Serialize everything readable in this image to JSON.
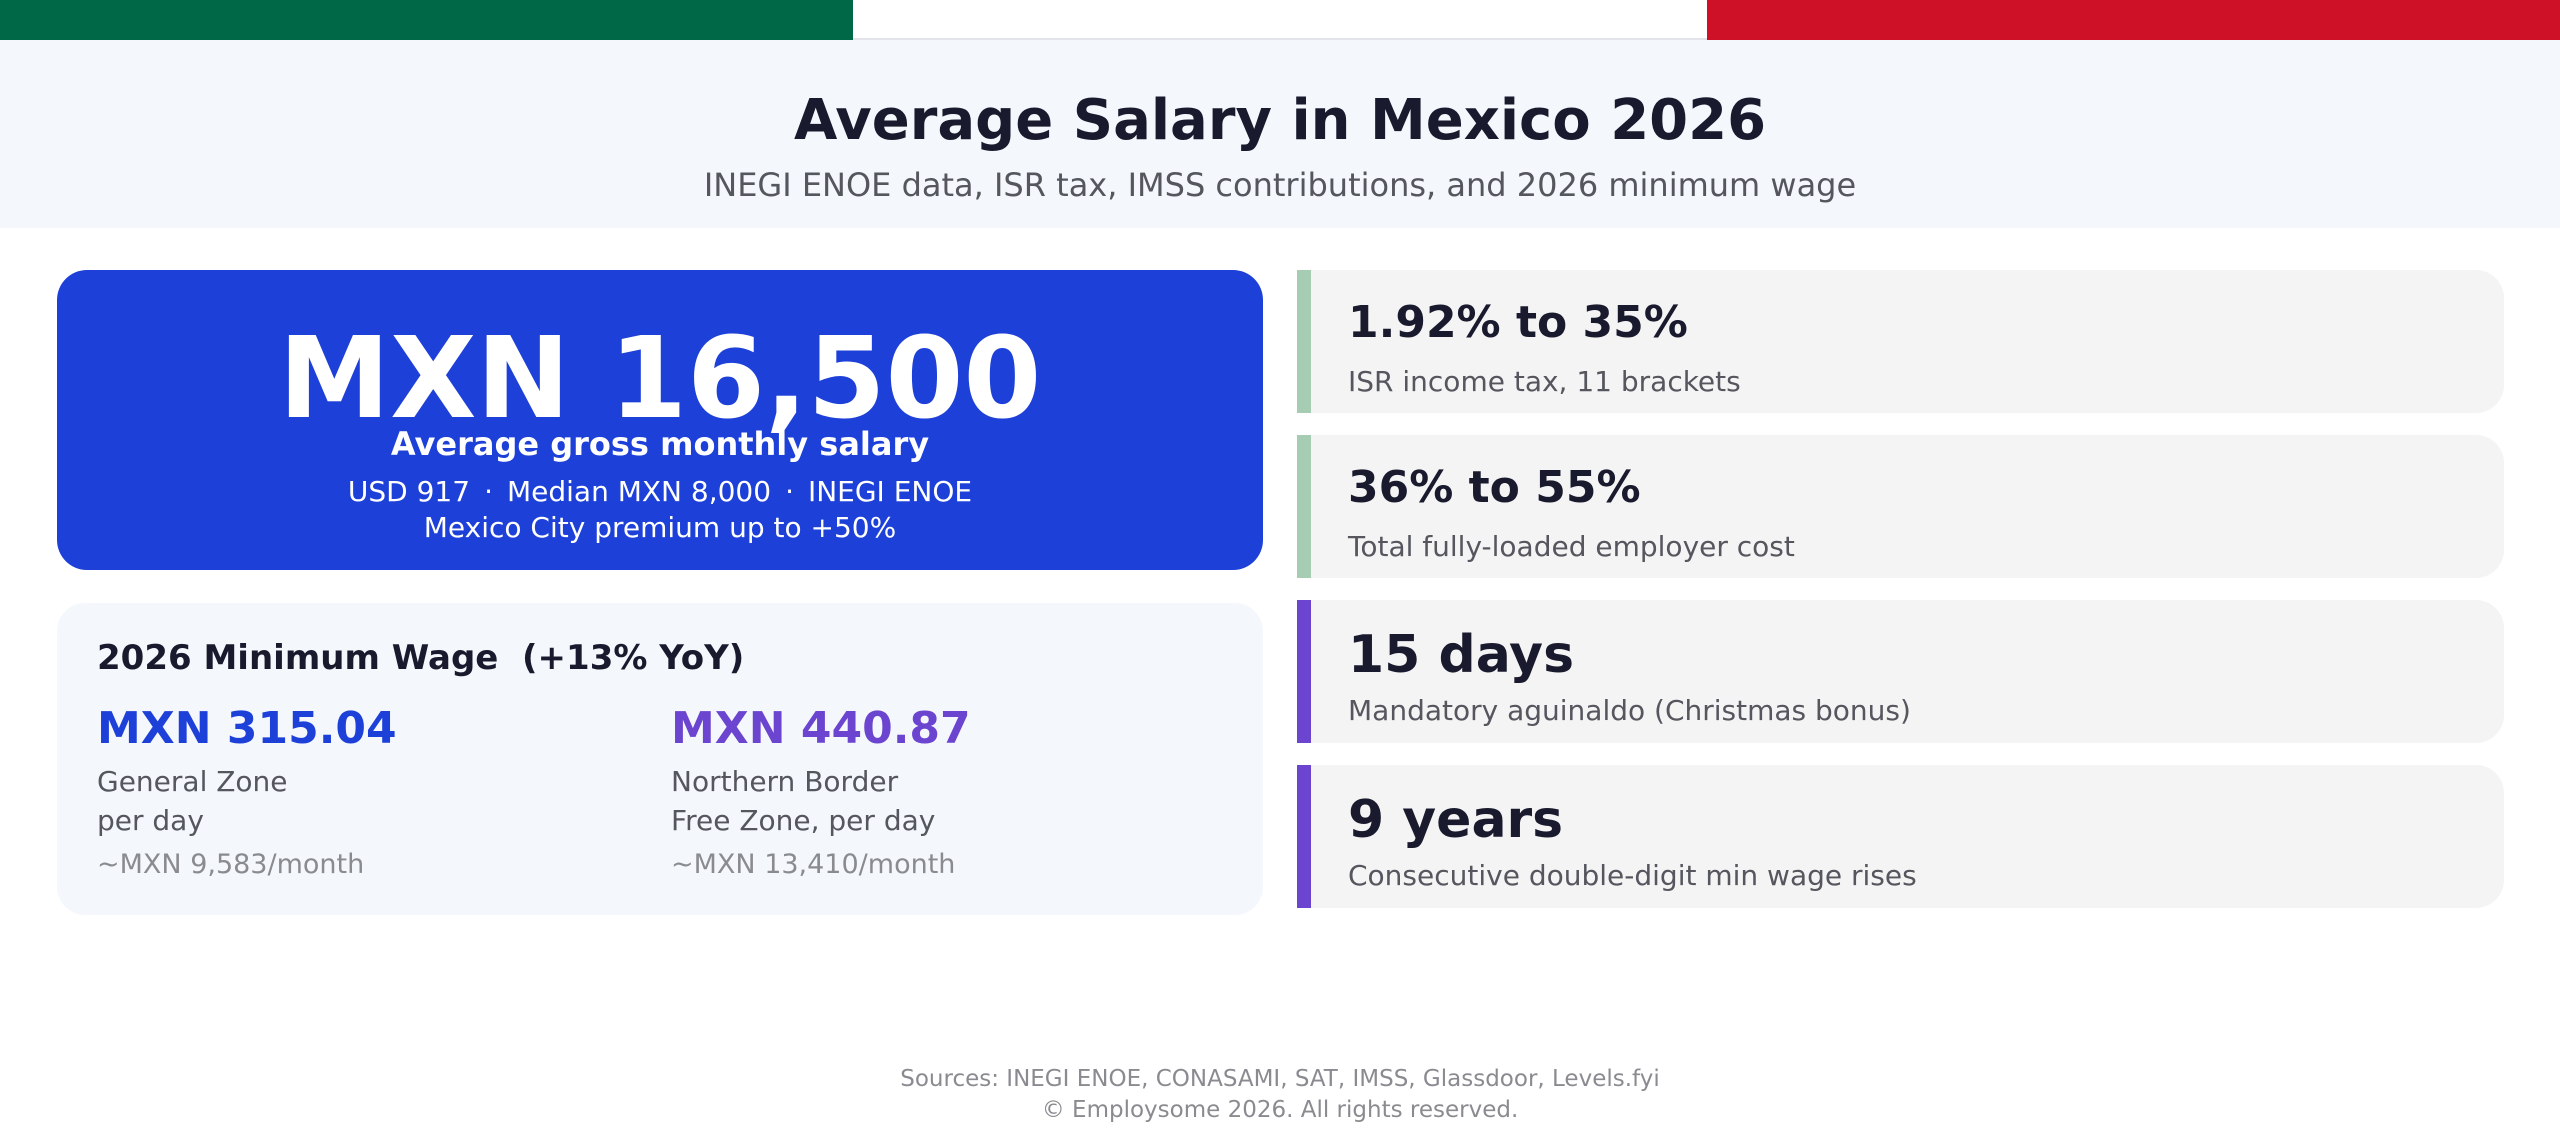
{
  "header": {
    "title": "Average Salary in Mexico 2026",
    "subtitle": "INEGI ENOE data, ISR tax, IMSS contributions, and 2026 minimum wage"
  },
  "hero": {
    "value": "MXN 16,500",
    "label": "Average gross monthly salary",
    "meta": [
      "USD 917",
      "Median MXN 8,000",
      "INEGI ENOE"
    ],
    "separator": "·",
    "note": "Mexico City premium up to +50%"
  },
  "min_wage": {
    "title": "2026 Minimum Wage  (+13% YoY)",
    "zones": [
      {
        "value": "MXN 315.04",
        "desc_line1": "General Zone",
        "desc_line2": "per day",
        "monthly": "~MXN 9,583/month"
      },
      {
        "value": "MXN 440.87",
        "desc_line1": "Northern Border",
        "desc_line2": "Free Zone, per day",
        "monthly": "~MXN 13,410/month"
      }
    ]
  },
  "stats": [
    {
      "value": "1.92% to 35%",
      "label": "ISR income tax, 11 brackets"
    },
    {
      "value": "36% to 55%",
      "label": "Total fully-loaded employer cost"
    },
    {
      "value": "15 days",
      "label": "Mandatory aguinaldo (Christmas bonus)"
    },
    {
      "value": "9 years",
      "label": "Consecutive double-digit min wage rises"
    }
  ],
  "footer": {
    "sources": "Sources: INEGI ENOE, CONASAMI, SAT, IMSS, Glassdoor, Levels.fyi",
    "copyright": "© Employsome 2026. All rights reserved."
  },
  "colors": {
    "flag_green": "#006847",
    "flag_white": "#ffffff",
    "flag_red": "#ce1126",
    "hero_blue": "#1d40d8",
    "accent_purple": "#6b44cf",
    "accent_green": "#a6cdb4"
  }
}
